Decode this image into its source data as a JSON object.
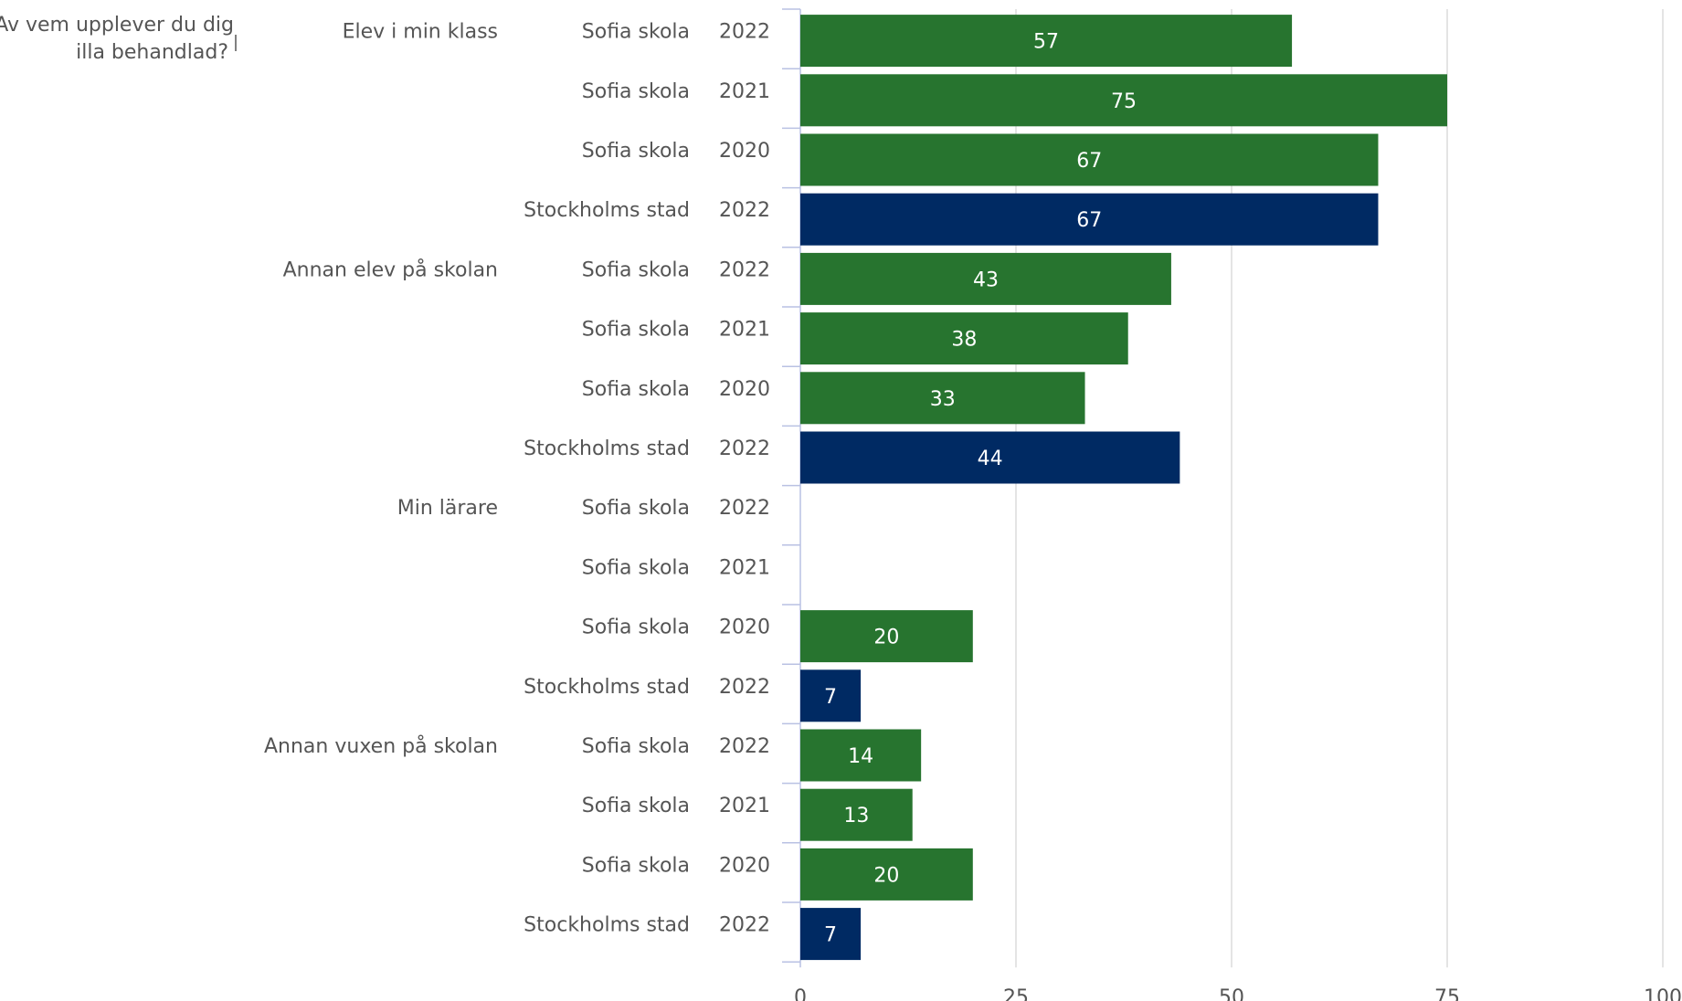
{
  "chart_data": {
    "type": "bar",
    "orientation": "horizontal",
    "title": "Av vem upplever du dig illa behandlad?",
    "title_lines": [
      "Av vem upplever du dig",
      "illa behandlad?"
    ],
    "xlim": [
      0,
      100
    ],
    "xticks": [
      0,
      25,
      50,
      75,
      100
    ],
    "grid": true,
    "colors": {
      "Sofia skola": "#27742f",
      "Stockholms stad": "#002a63"
    },
    "groups": [
      {
        "label": "Elev i min klass",
        "rows": [
          {
            "unit": "Sofia skola",
            "year": "2022",
            "value": 57
          },
          {
            "unit": "Sofia skola",
            "year": "2021",
            "value": 75
          },
          {
            "unit": "Sofia skola",
            "year": "2020",
            "value": 67
          },
          {
            "unit": "Stockholms stad",
            "year": "2022",
            "value": 67
          }
        ]
      },
      {
        "label": "Annan elev på skolan",
        "rows": [
          {
            "unit": "Sofia skola",
            "year": "2022",
            "value": 43
          },
          {
            "unit": "Sofia skola",
            "year": "2021",
            "value": 38
          },
          {
            "unit": "Sofia skola",
            "year": "2020",
            "value": 33
          },
          {
            "unit": "Stockholms stad",
            "year": "2022",
            "value": 44
          }
        ]
      },
      {
        "label": "Min lärare",
        "rows": [
          {
            "unit": "Sofia skola",
            "year": "2022",
            "value": null
          },
          {
            "unit": "Sofia skola",
            "year": "2021",
            "value": null
          },
          {
            "unit": "Sofia skola",
            "year": "2020",
            "value": 20
          },
          {
            "unit": "Stockholms stad",
            "year": "2022",
            "value": 7
          }
        ]
      },
      {
        "label": "Annan vuxen på skolan",
        "rows": [
          {
            "unit": "Sofia skola",
            "year": "2022",
            "value": 14
          },
          {
            "unit": "Sofia skola",
            "year": "2021",
            "value": 13
          },
          {
            "unit": "Sofia skola",
            "year": "2020",
            "value": 20
          },
          {
            "unit": "Stockholms stad",
            "year": "2022",
            "value": 7
          }
        ]
      }
    ]
  }
}
